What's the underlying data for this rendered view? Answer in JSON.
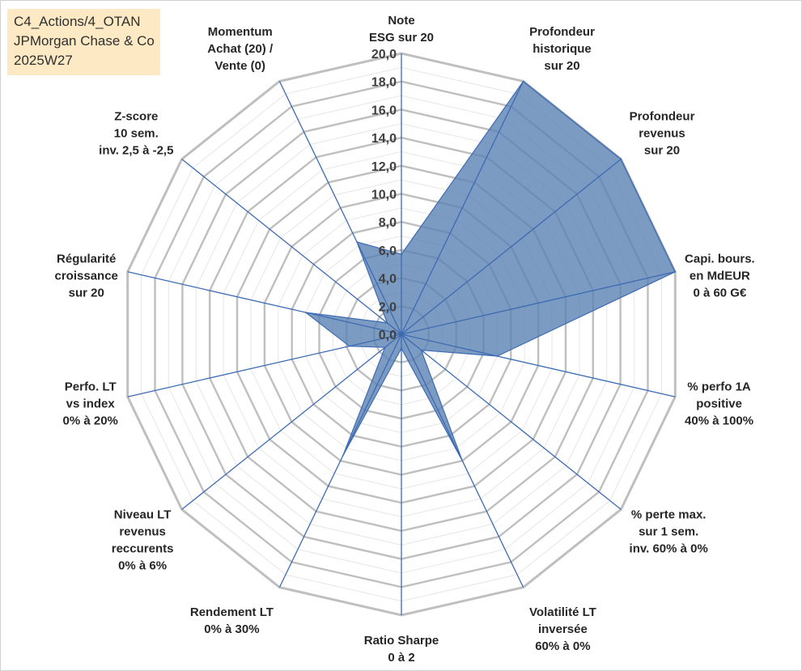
{
  "title_box": {
    "line1": "C4_Actions/4_OTAN",
    "line2": "JPMorgan Chase & Co",
    "line3": "2025W27"
  },
  "colors": {
    "fill": "#5b82b3",
    "fill_opacity": 0.8,
    "spokes": "#3d6bb3",
    "grid": "#bfbfbf",
    "title_bg": "#fde9c4"
  },
  "chart_data": {
    "type": "radar",
    "title": "",
    "rlim": [
      0,
      20
    ],
    "ticks": [
      "0,0",
      "2,0",
      "4,0",
      "6,0",
      "8,0",
      "10,0",
      "12,0",
      "14,0",
      "16,0",
      "18,0",
      "20,0"
    ],
    "grid": true,
    "legend": "none",
    "categories": [
      [
        "Note",
        "ESG sur 20"
      ],
      [
        "Profondeur",
        "historique",
        "sur 20"
      ],
      [
        "Profondeur",
        "revenus",
        "sur 20"
      ],
      [
        "Capi. bours.",
        "en MdEUR",
        "0 à 60 G€"
      ],
      [
        "% perfo 1A",
        "positive",
        "40% à 100%"
      ],
      [
        "% perte max.",
        "sur 1 sem.",
        "inv. 60% à 0%"
      ],
      [
        "Volatilité LT",
        "inversée",
        "60% à 0%"
      ],
      [
        "Ratio Sharpe",
        "0 à 2"
      ],
      [
        "Rendement LT",
        "0% à 30%"
      ],
      [
        "Niveau LT",
        "revenus",
        "reccurents",
        "0% à 6%"
      ],
      [
        "Perfo. LT",
        "vs index",
        "0% à 20%"
      ],
      [
        "Régularité",
        "croissance",
        "sur 20"
      ],
      [
        "Z-score",
        "10 sem.",
        "inv. 2,5 à -2,5"
      ],
      [
        "Momentum",
        "Achat (20) /",
        "Vente (0)"
      ]
    ],
    "series": [
      {
        "values": [
          5.7,
          20.0,
          20.0,
          20.0,
          7.0,
          1.8,
          10.0,
          1.0,
          9.6,
          1.5,
          3.8,
          7.0,
          1.3,
          7.3
        ]
      }
    ]
  }
}
